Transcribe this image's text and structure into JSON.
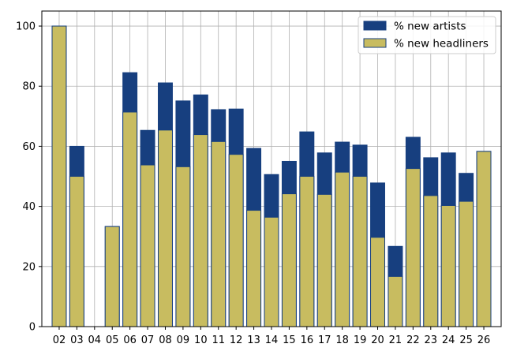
{
  "chart_data": {
    "type": "bar",
    "categories": [
      "02",
      "03",
      "04",
      "05",
      "06",
      "07",
      "08",
      "09",
      "10",
      "11",
      "12",
      "13",
      "14",
      "15",
      "16",
      "17",
      "18",
      "19",
      "20",
      "21",
      "22",
      "23",
      "24",
      "25",
      "26"
    ],
    "series": [
      {
        "name": "% new artists",
        "color": "#173f7f",
        "values": [
          100,
          60,
          0,
          33.3,
          84.5,
          65.3,
          81.1,
          75.1,
          77.1,
          72.2,
          72.4,
          59.3,
          50.6,
          55,
          64.8,
          57.8,
          61.4,
          60.4,
          47.8,
          26.7,
          63,
          56.2,
          57.8,
          51,
          58.3
        ]
      },
      {
        "name": "% new headliners",
        "color": "#c8bc60",
        "values": [
          100,
          50,
          0,
          33.3,
          71.4,
          53.8,
          65.4,
          53.2,
          63.9,
          61.6,
          57.3,
          38.7,
          36.4,
          44.2,
          50,
          44,
          51.4,
          50,
          29.7,
          16.7,
          52.6,
          43.6,
          40.3,
          41.7,
          58.3
        ]
      }
    ],
    "ylim": [
      0,
      105
    ],
    "yticks": [
      0,
      20,
      40,
      60,
      80,
      100
    ],
    "grid": true,
    "legend_position": "top-right"
  }
}
